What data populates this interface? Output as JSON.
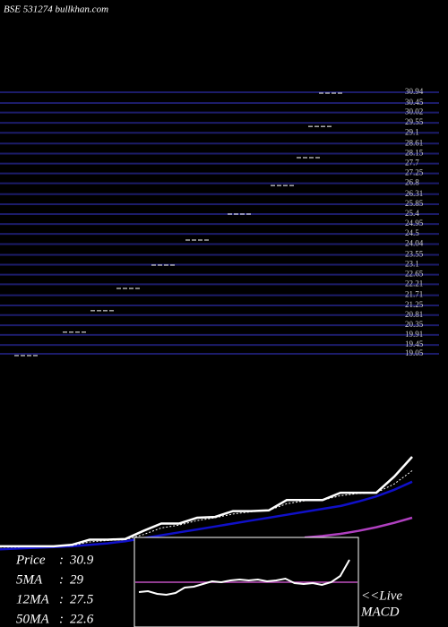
{
  "header": {
    "title": "BSE 531274  bullkhan.com"
  },
  "chart_data": [
    {
      "type": "scatter",
      "color": "#ffffff",
      "grid_color": "#1c1c6a",
      "xlim": [
        0,
        440
      ],
      "ylim": [
        19.05,
        30.94
      ],
      "yticks": [
        30.94,
        30.45,
        30.02,
        29.55,
        29.1,
        28.61,
        28.15,
        27.7,
        27.25,
        26.8,
        26.31,
        25.85,
        25.4,
        24.95,
        24.5,
        24.04,
        23.55,
        23.1,
        22.65,
        22.21,
        21.71,
        21.25,
        20.81,
        20.35,
        19.91,
        19.45,
        19.05
      ],
      "x": [
        30,
        84,
        115,
        144,
        183,
        221,
        268,
        316,
        345,
        358,
        370
      ],
      "values": [
        18.97,
        20.03,
        21.01,
        22.02,
        23.08,
        24.22,
        25.4,
        26.7,
        27.97,
        29.39,
        30.9
      ]
    },
    {
      "type": "line",
      "xlim": [
        0,
        500
      ],
      "ylim": [
        7.7,
        33.34
      ],
      "x": [
        0,
        20,
        40,
        60,
        80,
        100,
        120,
        140,
        160,
        180,
        200,
        220,
        240,
        260,
        280,
        300,
        320,
        340,
        360,
        380,
        400,
        420,
        440,
        460
      ],
      "series": [
        {
          "color": "#ffffff",
          "width": 2.5,
          "values": [
            18.7,
            18.7,
            18.7,
            18.7,
            18.9,
            19.6,
            19.6,
            19.7,
            20.8,
            21.8,
            21.8,
            22.6,
            22.7,
            23.5,
            23.5,
            23.6,
            25.0,
            25.0,
            25.0,
            26.0,
            26.0,
            26.0,
            28.2,
            30.9
          ]
        },
        {
          "color": "#ffffff",
          "width": 1,
          "dash": true,
          "values": [
            18.6,
            18.6,
            18.7,
            18.7,
            18.8,
            19.3,
            19.5,
            19.6,
            20.3,
            21.2,
            21.6,
            22.2,
            22.6,
            23.1,
            23.4,
            23.6,
            24.5,
            24.9,
            25.0,
            25.6,
            25.9,
            26.0,
            27.2,
            29.0
          ]
        },
        {
          "color": "#1010c8",
          "width": 2.5,
          "values": [
            18.3,
            18.4,
            18.5,
            18.6,
            18.7,
            18.9,
            19.1,
            19.4,
            19.8,
            20.2,
            20.6,
            21.0,
            21.4,
            21.8,
            22.2,
            22.6,
            23.0,
            23.4,
            23.8,
            24.2,
            24.8,
            25.5,
            26.4,
            27.5
          ]
        },
        {
          "color": "#b040c0",
          "width": 2.5,
          "values": [
            null,
            null,
            null,
            null,
            null,
            null,
            null,
            null,
            null,
            null,
            null,
            null,
            null,
            null,
            null,
            null,
            null,
            19.9,
            20.1,
            20.4,
            20.8,
            21.3,
            21.9,
            22.6
          ]
        }
      ]
    },
    {
      "type": "macd",
      "xlim": [
        0,
        23
      ],
      "ylim": [
        -1,
        1
      ],
      "signal": 0,
      "signal_color": "#c050c0",
      "color": "#ffffff",
      "x": [
        0,
        1,
        2,
        3,
        4,
        5,
        6,
        7,
        8,
        9,
        10,
        11,
        12,
        13,
        14,
        15,
        16,
        17,
        18,
        19,
        20,
        21,
        22,
        23
      ],
      "values": [
        -0.22,
        -0.2,
        -0.26,
        -0.28,
        -0.24,
        -0.12,
        -0.1,
        -0.04,
        0.02,
        0,
        0.04,
        0.06,
        0.04,
        0.06,
        0.02,
        0.04,
        0.08,
        -0.02,
        -0.04,
        -0.02,
        -0.06,
        0,
        0.14,
        0.5
      ],
      "label_lines": [
        "<<Live",
        "MACD"
      ]
    }
  ],
  "legend": [
    {
      "label": "Price",
      "value": 30.9
    },
    {
      "label": "5MA",
      "value": 29
    },
    {
      "label": "12MA",
      "value": 27.5
    },
    {
      "label": "50MA",
      "value": 22.6
    }
  ]
}
